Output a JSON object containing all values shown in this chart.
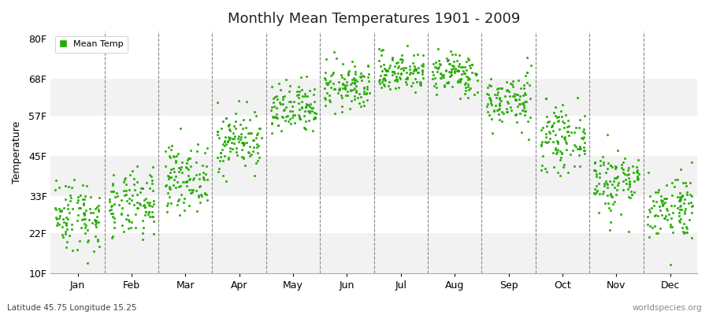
{
  "title": "Monthly Mean Temperatures 1901 - 2009",
  "ylabel": "Temperature",
  "yticks": [
    10,
    22,
    33,
    45,
    57,
    68,
    80
  ],
  "ytick_labels": [
    "10F",
    "22F",
    "33F",
    "45F",
    "57F",
    "68F",
    "80F"
  ],
  "ylim": [
    10,
    82
  ],
  "months": [
    "Jan",
    "Feb",
    "Mar",
    "Apr",
    "May",
    "Jun",
    "Jul",
    "Aug",
    "Sep",
    "Oct",
    "Nov",
    "Dec"
  ],
  "dot_color": "#22aa00",
  "fig_bg_color": "#ffffff",
  "plot_bg_color": "#ffffff",
  "band_colors": [
    "#f2f2f2",
    "#ffffff"
  ],
  "legend_label": "Mean Temp",
  "footer_left": "Latitude 45.75 Longitude 15.25",
  "footer_right": "worldspecies.org",
  "monthly_mean_temps_F": [
    27.5,
    30.0,
    38.5,
    49.5,
    58.5,
    65.5,
    70.0,
    69.5,
    61.5,
    50.0,
    37.5,
    30.0
  ],
  "monthly_std_F": [
    5.5,
    5.0,
    4.8,
    4.5,
    4.0,
    3.5,
    3.0,
    3.2,
    4.0,
    4.5,
    5.0,
    5.0
  ],
  "n_years": 109,
  "random_seed": 42
}
